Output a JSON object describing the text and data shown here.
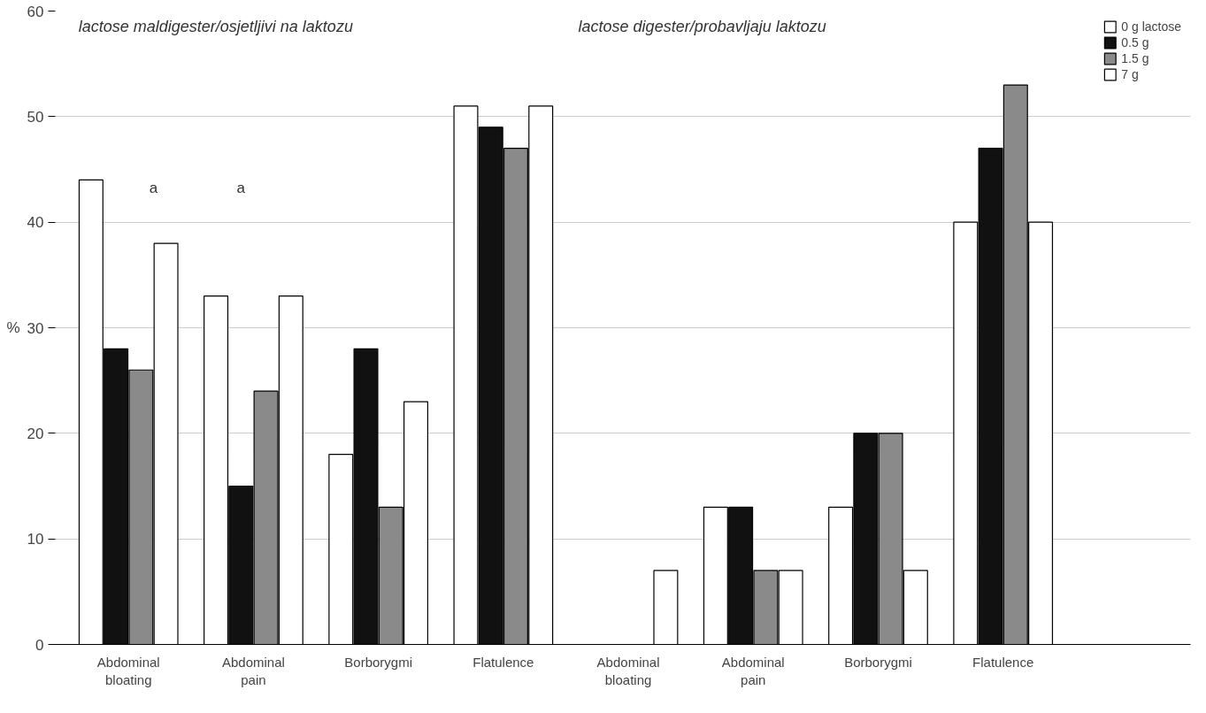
{
  "chart_data": {
    "type": "bar",
    "categories": [
      "Abdominal bloating",
      "Abdominal pain",
      "Borborygmi",
      "Flatulence",
      "Abdominal bloating",
      "Abdominal pain",
      "Borborygmi",
      "Flatulence"
    ],
    "series": [
      {
        "name": "0 g lactose",
        "color": "#ffffff",
        "values": [
          44,
          33,
          18,
          51,
          null,
          13,
          13,
          40
        ]
      },
      {
        "name": "0.5 g",
        "color": "#111111",
        "values": [
          28,
          15,
          28,
          49,
          null,
          13,
          20,
          47
        ]
      },
      {
        "name": "1.5 g",
        "color": "#8a8a8a",
        "values": [
          26,
          24,
          13,
          47,
          null,
          7,
          20,
          53
        ]
      },
      {
        "name": "7 g",
        "color": "#ffffff",
        "values": [
          38,
          33,
          23,
          51,
          7,
          7,
          7,
          40
        ]
      }
    ],
    "ylabel": "%",
    "ylim": [
      0,
      60
    ],
    "yticks": [
      0,
      10,
      20,
      30,
      40,
      50,
      60
    ],
    "grid": "y",
    "legend": "top right",
    "annotations": [
      "lactose maldigester/osjetljivi na laktozu",
      "lactose digester/probavljaju laktozu",
      "a",
      "a"
    ]
  }
}
